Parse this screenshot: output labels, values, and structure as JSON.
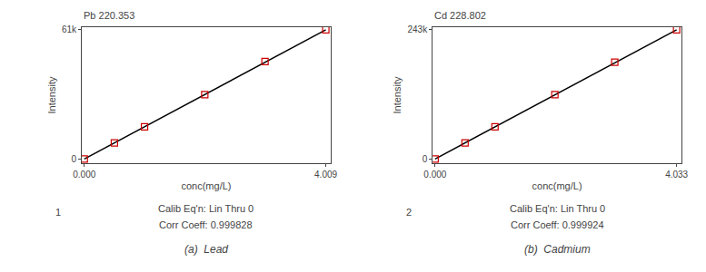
{
  "chart_data": [
    {
      "type": "scatter",
      "title": "Pb 220.353",
      "x_label": "conc(mg/L)",
      "y_label": "Intensity",
      "series": [
        {
          "type": "line",
          "color": "#000000",
          "x": [
            0.0,
            4.009
          ],
          "values": [
            0,
            61000
          ]
        },
        {
          "type": "scatter",
          "marker": "square-open",
          "color": "#cc0000",
          "x": [
            0.0,
            0.5,
            1.0,
            2.0,
            3.0,
            4.009
          ],
          "values": [
            0,
            7600,
            15200,
            30400,
            46000,
            61000
          ]
        }
      ],
      "xlim": [
        -0.04009,
        4.08918
      ],
      "xticks": [
        {
          "value": 0,
          "label": "0.000"
        },
        4.009
      ],
      "ylim": [
        -2000,
        62220
      ],
      "yticks": [
        0,
        {
          "value": 61000,
          "label": "61k"
        }
      ],
      "grid": false,
      "annotations": [
        "1",
        "Calib Eq'n: Lin Thru 0",
        "Corr Coeff: 0.999828",
        "(a)  Lead"
      ]
    },
    {
      "type": "scatter",
      "title": "Cd 228.802",
      "x_label": "conc(mg/L)",
      "y_label": "Intensity",
      "series": [
        {
          "type": "line",
          "color": "#000000",
          "x": [
            0.0,
            4.033
          ],
          "values": [
            0,
            243000
          ]
        },
        {
          "type": "scatter",
          "marker": "square-open",
          "color": "#cc0000",
          "x": [
            0.0,
            0.5,
            1.0,
            2.0,
            3.0,
            4.033
          ],
          "values": [
            0,
            30000,
            60500,
            121000,
            182000,
            243000
          ]
        }
      ],
      "xlim": [
        -0.04033,
        4.11366
      ],
      "xticks": [
        {
          "value": 0,
          "label": "0.000"
        },
        4.033
      ],
      "ylim": [
        -8000,
        247860
      ],
      "yticks": [
        0,
        {
          "value": 243000,
          "label": "243k"
        }
      ],
      "grid": false,
      "annotations": [
        "2",
        "Calib Eq'n: Lin Thru 0",
        "Corr Coeff: 0.999924",
        "(b)  Cadmium"
      ]
    }
  ]
}
